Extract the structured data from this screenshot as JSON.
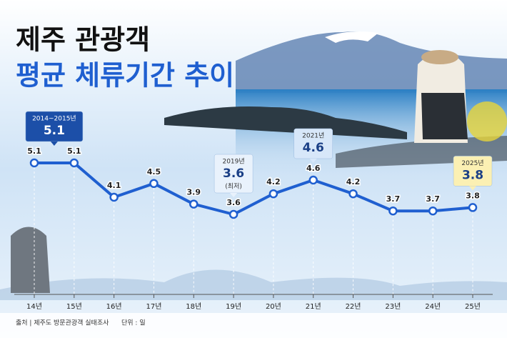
{
  "chart_data": {
    "type": "line",
    "title": "제주 관광객",
    "subtitle": "평균 체류기간 추이",
    "categories": [
      "14년",
      "15년",
      "16년",
      "17년",
      "18년",
      "19년",
      "20년",
      "21년",
      "22년",
      "23년",
      "24년",
      "25년"
    ],
    "values": [
      5.1,
      5.1,
      4.1,
      4.5,
      3.9,
      3.6,
      4.2,
      4.6,
      4.2,
      3.7,
      3.7,
      3.8
    ],
    "color": "#1f5fd0",
    "callout_labels": [
      "2014~2015년",
      null,
      null,
      null,
      null,
      "2019년",
      null,
      "2021년",
      null,
      null,
      null,
      "2025년"
    ],
    "callout_notes": [
      null,
      null,
      null,
      null,
      null,
      "(최저)",
      null,
      null,
      null,
      null,
      null,
      null
    ],
    "source": "출처 | 제주도 방문관광객 실태조사",
    "unit": "단위 : 일"
  }
}
